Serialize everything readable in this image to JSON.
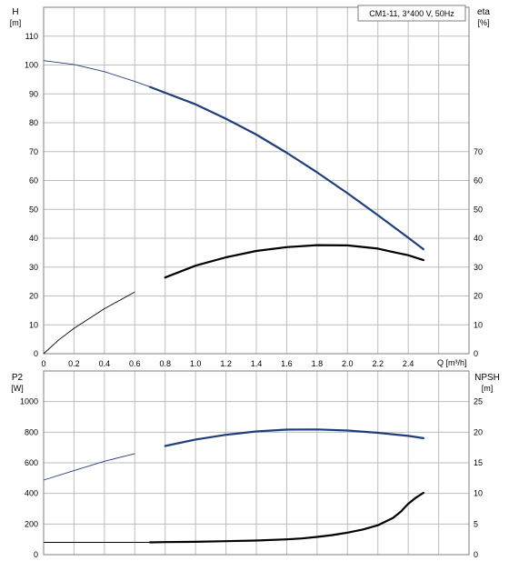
{
  "colors": {
    "head_curve": "#1f3f7a",
    "eff_curve": "#000000",
    "power_curve": "#1f3f7a",
    "npsh_curve": "#000000",
    "grid": "#bdbdbd",
    "frame": "#7f7f7f"
  },
  "chart_data": [
    {
      "type": "line",
      "title": "CM1-11, 3*400 V, 50Hz",
      "xlabel": "Q [m³/h]",
      "ylabel_left": [
        "H",
        "[m]"
      ],
      "ylabel_right": [
        "eta",
        "[%]"
      ],
      "xlim": [
        0,
        2.8
      ],
      "ylim_left": [
        0,
        120
      ],
      "ylim_right": [
        0,
        120
      ],
      "x_ticks": [
        "0",
        "0.2",
        "0.4",
        "0.6",
        "0.8",
        "1.0",
        "1.2",
        "1.4",
        "1.6",
        "1.8",
        "2.0",
        "2.2",
        "2.4"
      ],
      "y_ticks_left": [
        "0",
        "10",
        "20",
        "30",
        "40",
        "50",
        "60",
        "70",
        "80",
        "90",
        "100",
        "110"
      ],
      "y_ticks_right": [
        "0",
        "10",
        "20",
        "30",
        "40",
        "50",
        "60",
        "70"
      ],
      "grid": true,
      "series": [
        {
          "axis": "left",
          "x": [
            0,
            0.2,
            0.4,
            0.6,
            0.7,
            0.8,
            1.0,
            1.2,
            1.4,
            1.6,
            1.8,
            2.0,
            2.2,
            2.4,
            2.5
          ],
          "y": [
            101.5,
            100.2,
            97.7,
            94.3,
            92.4,
            90.4,
            86.4,
            81.4,
            75.9,
            69.6,
            62.8,
            55.6,
            48.0,
            40.2,
            36.2
          ],
          "bold_from": 0.7
        },
        {
          "axis": "right",
          "x": [
            0,
            0.1,
            0.2,
            0.4,
            0.6,
            0.8,
            1.0,
            1.2,
            1.4,
            1.6,
            1.8,
            2.0,
            2.2,
            2.3,
            2.4,
            2.5
          ],
          "y": [
            0,
            4.8,
            8.8,
            15.6,
            21.4,
            26.4,
            30.5,
            33.4,
            35.6,
            36.9,
            37.6,
            37.5,
            36.4,
            35.2,
            34.1,
            32.4
          ],
          "bold_from": 0.7
        }
      ]
    },
    {
      "type": "line",
      "title": "",
      "xlabel": "",
      "ylabel_left": [
        "P2",
        "[W]"
      ],
      "ylabel_right": [
        "NPSH",
        "[m]"
      ],
      "xlim": [
        0,
        2.8
      ],
      "ylim_left": [
        0,
        1200
      ],
      "ylim_right": [
        0,
        30
      ],
      "y_ticks_left": [
        "0",
        "200",
        "400",
        "600",
        "800",
        "1000"
      ],
      "y_ticks_right": [
        "0",
        "5",
        "10",
        "15",
        "20",
        "25"
      ],
      "grid": true,
      "series": [
        {
          "axis": "left",
          "x": [
            0,
            0.2,
            0.4,
            0.6,
            0.8,
            1.0,
            1.2,
            1.4,
            1.6,
            1.8,
            2.0,
            2.2,
            2.4,
            2.5
          ],
          "y": [
            487,
            549,
            610,
            660,
            710,
            752,
            783,
            805,
            817,
            818,
            811,
            796,
            776,
            761
          ],
          "bold_from": 0.7
        },
        {
          "axis": "right",
          "x": [
            0,
            0.2,
            0.4,
            0.6,
            0.7,
            0.8,
            1.0,
            1.2,
            1.4,
            1.6,
            1.7,
            1.8,
            1.9,
            2.0,
            2.1,
            2.2,
            2.3,
            2.35,
            2.4,
            2.45,
            2.5
          ],
          "y": [
            2.0,
            2.0,
            2.0,
            2.0,
            2.0,
            2.05,
            2.1,
            2.2,
            2.3,
            2.5,
            2.65,
            2.9,
            3.2,
            3.6,
            4.1,
            4.8,
            6.0,
            7.0,
            8.3,
            9.3,
            10.1
          ],
          "bold_from": 0.7
        }
      ]
    }
  ]
}
